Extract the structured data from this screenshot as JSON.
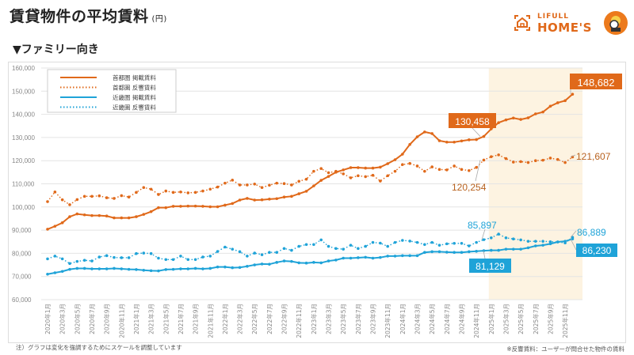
{
  "header": {
    "title": "賃貸物件の平均賃料",
    "unit": "(円)",
    "subtitle": "▼ファミリー向き"
  },
  "logo": {
    "line1": "LIFULL",
    "line2": "HOME'S"
  },
  "footnotes": {
    "left": "注）グラフは変化を強調するためにスケールを調整しています",
    "right": "※反響賃料：ユーザーが問合せた物件の賃料"
  },
  "chart_data": {
    "type": "line",
    "ylim": [
      60000,
      160000
    ],
    "y_ticks": [
      "60,000",
      "70,000",
      "80,000",
      "90,000",
      "100,000",
      "110,000",
      "120,000",
      "130,000",
      "140,000",
      "150,000",
      "160,000"
    ],
    "grid": true,
    "legend_position": "top-left",
    "x_tick_labels": [
      "2020年1月",
      "2020年3月",
      "2020年5月",
      "2020年7月",
      "2020年9月",
      "2020年11月",
      "2021年1月",
      "2021年3月",
      "2021年5月",
      "2021年7月",
      "2021年9月",
      "2021年11月",
      "2022年1月",
      "2022年3月",
      "2022年5月",
      "2022年7月",
      "2022年9月",
      "2022年11月",
      "2023年1月",
      "2023年3月",
      "2023年5月",
      "2023年7月",
      "2023年9月",
      "2023年11月",
      "2024年1月",
      "2024年3月",
      "2024年5月",
      "2024年7月",
      "2024年9月",
      "2024年11月",
      "2025年1月",
      "2025年3月",
      "2025年5月",
      "2025年7月",
      "2025年9月",
      "2025年11月"
    ],
    "highlight_from_tick": "2025年1月",
    "colors": {
      "tokyo": "#e0691a",
      "kansai": "#1fa3d8",
      "highlight": "#fdf3e1"
    },
    "series": [
      {
        "name": "首都圏 掲載賃料",
        "style": "solid",
        "color": "#e0691a",
        "values": [
          90400,
          91700,
          93200,
          95800,
          97000,
          96600,
          96300,
          96300,
          96100,
          95300,
          95300,
          95300,
          95800,
          96800,
          98000,
          99700,
          99700,
          100300,
          100300,
          100400,
          100400,
          100300,
          100100,
          100100,
          100800,
          101500,
          103000,
          103700,
          103000,
          103100,
          103400,
          103600,
          104300,
          104600,
          105700,
          106800,
          109100,
          111500,
          113200,
          115000,
          116000,
          117000,
          117000,
          116800,
          116800,
          117200,
          118700,
          120400,
          122800,
          127000,
          130300,
          132400,
          131700,
          128600,
          128000,
          128000,
          128500,
          129000,
          129100,
          130458,
          133700,
          136400,
          137600,
          138400,
          137800,
          138500,
          140200,
          141000,
          143500,
          145000,
          145900,
          148682
        ]
      },
      {
        "name": "首都圏 反響賃料",
        "style": "dotted",
        "color": "#e0691a",
        "values": [
          102300,
          106500,
          103100,
          101000,
          103200,
          104600,
          104600,
          104800,
          104000,
          103700,
          104900,
          104300,
          106300,
          108400,
          107700,
          105400,
          106900,
          106300,
          106500,
          106100,
          106300,
          106900,
          107700,
          108600,
          110300,
          111600,
          109500,
          109500,
          109900,
          108400,
          109400,
          110300,
          110100,
          109500,
          111100,
          112000,
          115400,
          116600,
          114800,
          115400,
          114300,
          112600,
          113500,
          113100,
          113700,
          111200,
          113500,
          115400,
          118300,
          118800,
          117700,
          115400,
          117300,
          116200,
          116000,
          117700,
          116200,
          115700,
          117100,
          120254,
          121700,
          122500,
          120900,
          119400,
          119600,
          119200,
          120000,
          120200,
          121100,
          120500,
          119200,
          121607
        ]
      },
      {
        "name": "近畿圏 掲載賃料",
        "style": "solid",
        "color": "#1fa3d8",
        "values": [
          71000,
          71600,
          72200,
          73100,
          73500,
          73500,
          73300,
          73300,
          73300,
          73500,
          73300,
          73100,
          73000,
          72700,
          72500,
          72400,
          73000,
          73100,
          73300,
          73300,
          73500,
          73300,
          73500,
          74100,
          74100,
          73800,
          73900,
          74400,
          75000,
          75400,
          75300,
          76100,
          76700,
          76500,
          75900,
          75800,
          76100,
          75900,
          76700,
          77100,
          77900,
          77900,
          78100,
          78300,
          77900,
          78200,
          78800,
          78800,
          79000,
          79000,
          79000,
          80400,
          80700,
          80700,
          80500,
          80400,
          80400,
          80700,
          80900,
          81129,
          81300,
          81300,
          81800,
          81800,
          81800,
          82400,
          83200,
          83500,
          84100,
          84900,
          85200,
          86230
        ]
      },
      {
        "name": "近畿圏 反響賃料",
        "style": "dotted",
        "color": "#1fa3d8",
        "values": [
          77600,
          78800,
          77600,
          75600,
          76500,
          77000,
          76700,
          78400,
          79000,
          78200,
          78100,
          78100,
          79900,
          80100,
          79900,
          77900,
          77300,
          77300,
          78800,
          77300,
          77300,
          78400,
          78800,
          80800,
          82700,
          81800,
          80700,
          78800,
          80100,
          79400,
          80400,
          80400,
          82100,
          81300,
          83000,
          83800,
          83800,
          85800,
          83000,
          82100,
          81800,
          83500,
          82100,
          83000,
          84700,
          84400,
          83000,
          84700,
          85600,
          85300,
          84700,
          83800,
          84700,
          83500,
          84100,
          84300,
          84300,
          83200,
          84700,
          85897,
          86700,
          88300,
          86700,
          86200,
          85800,
          85200,
          85200,
          85200,
          85000,
          84900,
          84500,
          86889
        ]
      }
    ],
    "annotations": [
      {
        "text": "148,682",
        "series": "首都圏 掲載賃料",
        "boxed": true
      },
      {
        "text": "130,458",
        "series": "首都圏 掲載賃料",
        "boxed": true
      },
      {
        "text": "121,607",
        "series": "首都圏 反響賃料",
        "boxed": false
      },
      {
        "text": "120,254",
        "series": "首都圏 反響賃料",
        "boxed": false
      },
      {
        "text": "85,897",
        "series": "近畿圏 反響賃料",
        "boxed": false
      },
      {
        "text": "86,889",
        "series": "近畿圏 反響賃料",
        "boxed": false
      },
      {
        "text": "86,230",
        "series": "近畿圏 掲載賃料",
        "boxed": true
      },
      {
        "text": "81,129",
        "series": "近畿圏 掲載賃料",
        "boxed": true
      }
    ]
  }
}
